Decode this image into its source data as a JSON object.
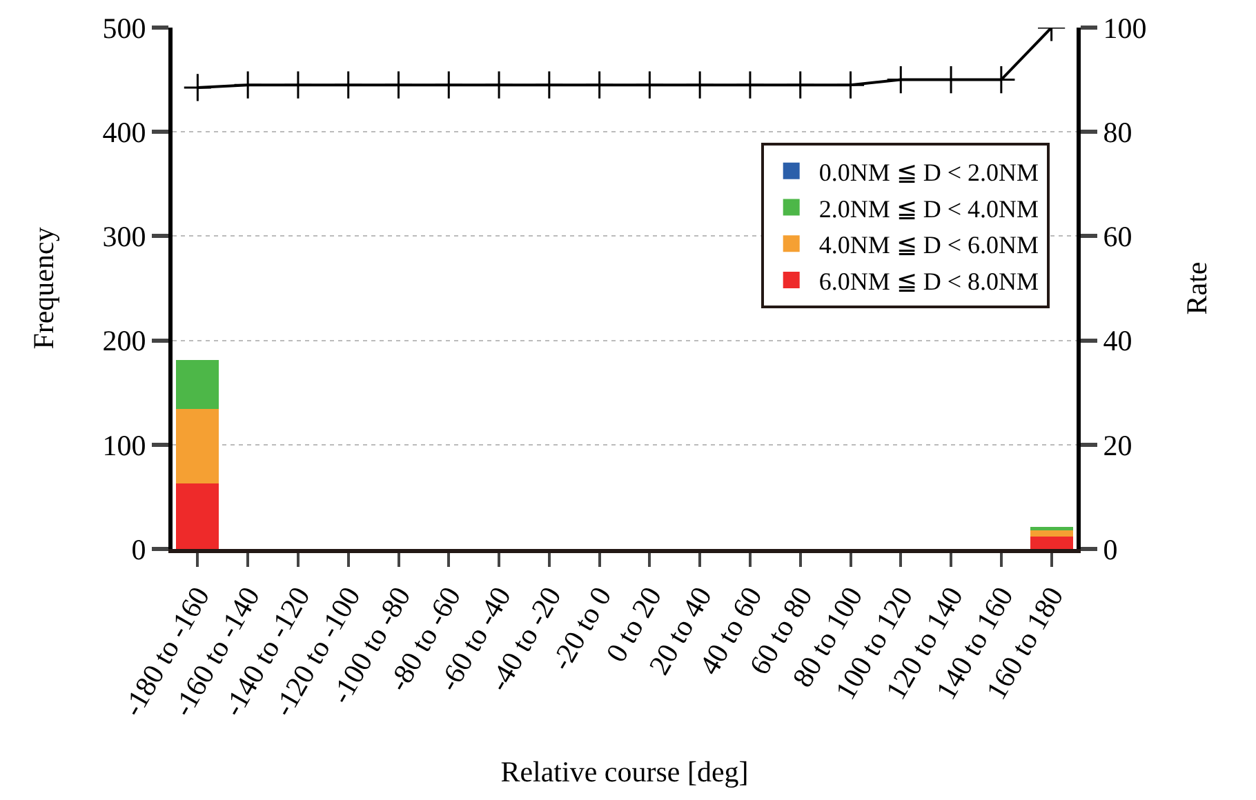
{
  "chart_data": {
    "type": "bar",
    "stacked": true,
    "xlabel": "Relative course [deg]",
    "ylabel": "Frequency",
    "y2label": "Rate",
    "categories": [
      "-180 to -160",
      "-160 to -140",
      "-140 to -120",
      "-120 to -100",
      "-100 to -80",
      "-80 to -60",
      "-60 to -40",
      "-40 to -20",
      "-20 to 0",
      "0 to 20",
      "20 to 40",
      "40 to 60",
      "60 to 80",
      "80 to 100",
      "100 to 120",
      "120 to 140",
      "140 to 160",
      "160 to 180"
    ],
    "series": [
      {
        "name": "6.0NM ≦ D < 8.0NM",
        "color": "#ee2a2a",
        "values": [
          63,
          0,
          0,
          0,
          0,
          0,
          0,
          0,
          0,
          0,
          0,
          0,
          0,
          0,
          0,
          0,
          0,
          12
        ]
      },
      {
        "name": "4.0NM ≦ D < 6.0NM",
        "color": "#f5a033",
        "values": [
          71,
          0,
          0,
          0,
          0,
          0,
          0,
          0,
          0,
          0,
          0,
          0,
          0,
          0,
          0,
          0,
          0,
          6
        ]
      },
      {
        "name": "2.0NM ≦ D < 4.0NM",
        "color": "#4db748",
        "values": [
          47,
          0,
          0,
          0,
          0,
          0,
          0,
          0,
          0,
          0,
          0,
          0,
          0,
          0,
          0,
          0,
          0,
          3
        ]
      },
      {
        "name": "0.0NM ≦ D < 2.0NM",
        "color": "#2b5faa",
        "values": [
          0,
          0,
          0,
          0,
          0,
          0,
          0,
          0,
          0,
          0,
          0,
          0,
          0,
          0,
          0,
          0,
          0,
          0
        ]
      },
      {
        "type": "line",
        "axis": "y2",
        "color": "#000000",
        "marker": "cross",
        "values": [
          88.5,
          89,
          89,
          89,
          89,
          89,
          89,
          89,
          89,
          89,
          89,
          89,
          89,
          89,
          90,
          90,
          90,
          100
        ]
      }
    ],
    "ylim": [
      0,
      500
    ],
    "yticks": [
      0,
      100,
      200,
      300,
      400,
      500
    ],
    "y2lim": [
      0,
      100
    ],
    "y2ticks": [
      0,
      20,
      40,
      60,
      80,
      100
    ],
    "grid": "y",
    "legend": "right"
  }
}
